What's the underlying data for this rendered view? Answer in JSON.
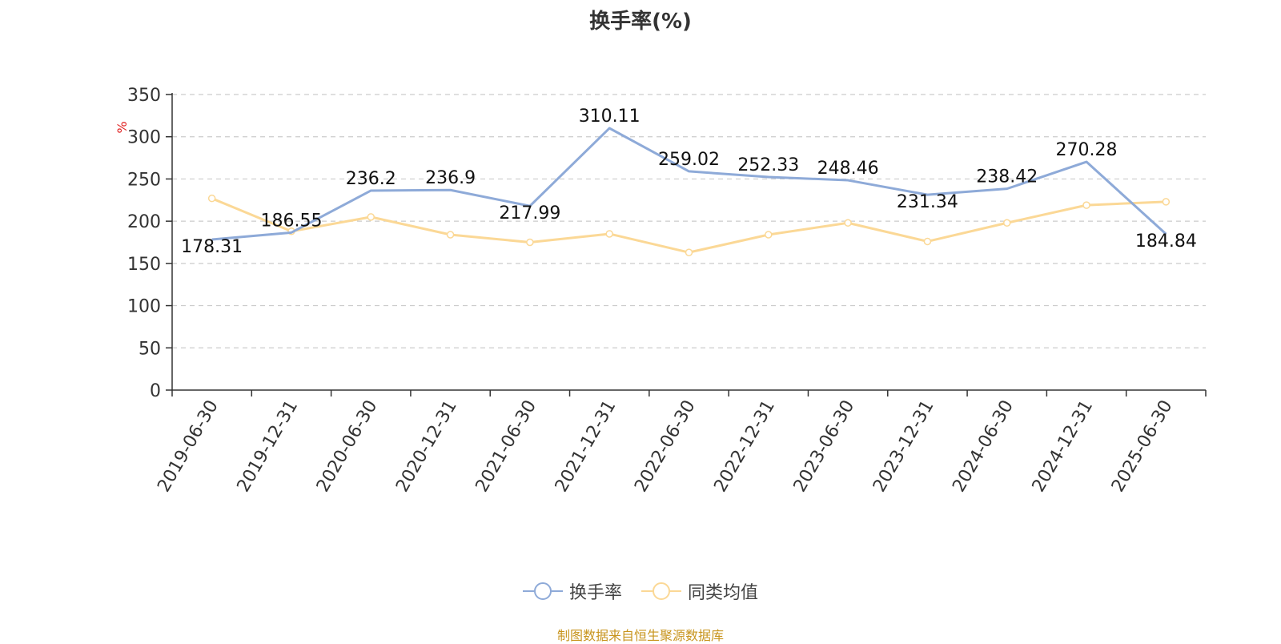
{
  "chart_data": {
    "type": "line",
    "title": "换手率(%)",
    "ylabel": "%",
    "ylim": [
      0,
      350
    ],
    "yticks": [
      0,
      50,
      100,
      150,
      200,
      250,
      300,
      350
    ],
    "grid": true,
    "legend_position": "bottom",
    "categories": [
      "2019-06-30",
      "2019-12-31",
      "2020-06-30",
      "2020-12-31",
      "2021-06-30",
      "2021-12-31",
      "2022-06-30",
      "2022-12-31",
      "2023-06-30",
      "2023-12-31",
      "2024-06-30",
      "2024-12-31",
      "2025-06-30"
    ],
    "series": [
      {
        "name": "换手率",
        "color": "#8eaad8",
        "values": [
          178.31,
          186.55,
          236.2,
          236.9,
          217.99,
          310.11,
          259.02,
          252.33,
          248.46,
          231.34,
          238.42,
          270.28,
          184.84
        ],
        "labels": [
          "178.31",
          "186.55",
          "236.2",
          "236.9",
          "217.99",
          "310.11",
          "259.02",
          "252.33",
          "248.46",
          "231.34",
          "238.42",
          "270.28",
          "184.84"
        ]
      },
      {
        "name": "同类均值",
        "color": "#fbd896",
        "values": [
          227,
          188,
          205,
          184,
          175,
          185,
          163,
          184,
          198,
          176,
          198,
          219,
          223
        ]
      }
    ]
  },
  "source_note": "制图数据来自恒生聚源数据库"
}
